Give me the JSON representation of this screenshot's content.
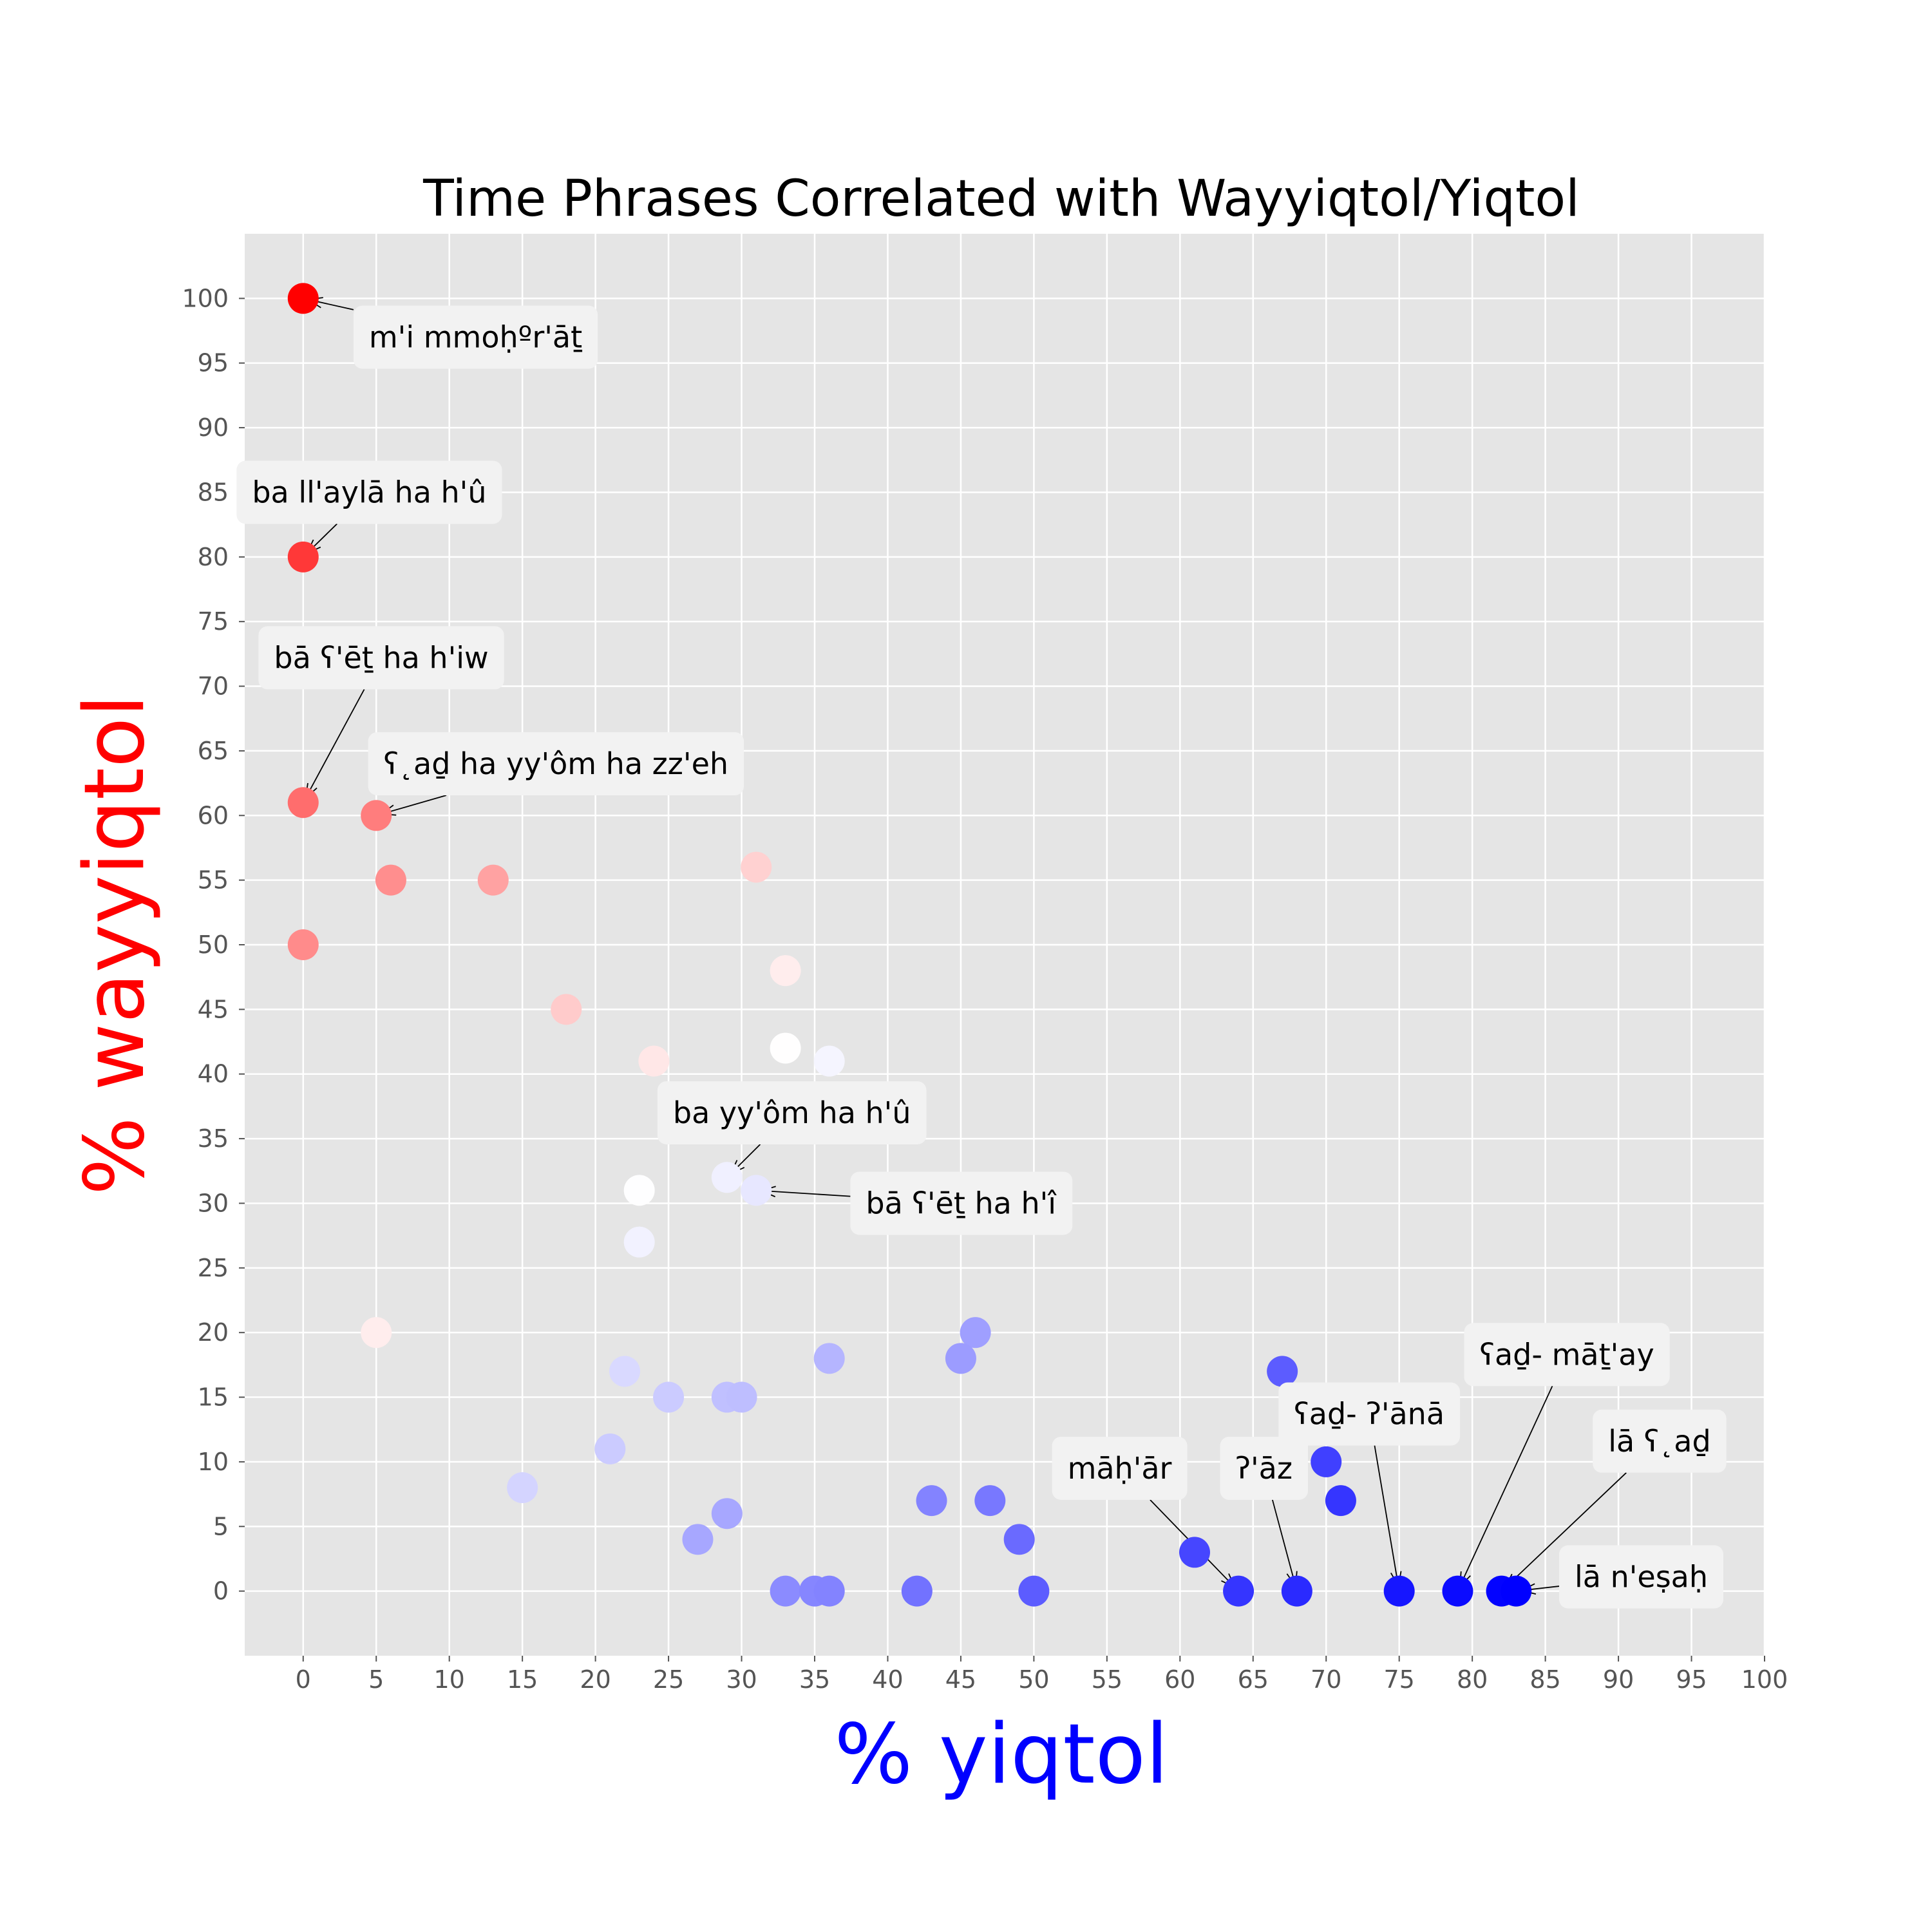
{
  "chart_data": {
    "type": "scatter",
    "title": "Time Phrases Correlated with Wayyiqtol/Yiqtol",
    "xlabel": "% yiqtol",
    "ylabel": "% wayyiqtol",
    "xlim": [
      -4,
      100
    ],
    "ylim": [
      -5,
      105
    ],
    "x_ticks": [
      0,
      5,
      10,
      15,
      20,
      25,
      30,
      35,
      40,
      45,
      50,
      55,
      60,
      65,
      70,
      75,
      80,
      85,
      90,
      95,
      100
    ],
    "y_ticks": [
      0,
      5,
      10,
      15,
      20,
      25,
      30,
      35,
      40,
      45,
      50,
      55,
      60,
      65,
      70,
      75,
      80,
      85,
      90,
      95,
      100
    ],
    "grid": true,
    "colors": {
      "background": "#e5e5e5",
      "grid": "#ffffff",
      "xlabel": "#0000ff",
      "ylabel": "#ff0000",
      "annotation_box": "#f2f2f2",
      "colormap": "bwr"
    },
    "points": [
      {
        "x": 0,
        "y": 100
      },
      {
        "x": 0,
        "y": 80
      },
      {
        "x": 0,
        "y": 61
      },
      {
        "x": 0,
        "y": 50
      },
      {
        "x": 5,
        "y": 60
      },
      {
        "x": 6,
        "y": 55
      },
      {
        "x": 13,
        "y": 55
      },
      {
        "x": 5,
        "y": 20
      },
      {
        "x": 18,
        "y": 45
      },
      {
        "x": 24,
        "y": 41
      },
      {
        "x": 31,
        "y": 56
      },
      {
        "x": 33,
        "y": 48
      },
      {
        "x": 33,
        "y": 42
      },
      {
        "x": 36,
        "y": 41
      },
      {
        "x": 29,
        "y": 32
      },
      {
        "x": 31,
        "y": 31
      },
      {
        "x": 23,
        "y": 31
      },
      {
        "x": 23,
        "y": 27
      },
      {
        "x": 22,
        "y": 17
      },
      {
        "x": 25,
        "y": 15
      },
      {
        "x": 29,
        "y": 15
      },
      {
        "x": 30,
        "y": 15
      },
      {
        "x": 36,
        "y": 18
      },
      {
        "x": 15,
        "y": 8
      },
      {
        "x": 21,
        "y": 11
      },
      {
        "x": 27,
        "y": 4
      },
      {
        "x": 29,
        "y": 6
      },
      {
        "x": 46,
        "y": 20
      },
      {
        "x": 45,
        "y": 18
      },
      {
        "x": 43,
        "y": 7
      },
      {
        "x": 47,
        "y": 7
      },
      {
        "x": 49,
        "y": 4
      },
      {
        "x": 33,
        "y": 0
      },
      {
        "x": 35,
        "y": 0
      },
      {
        "x": 36,
        "y": 0
      },
      {
        "x": 42,
        "y": 0
      },
      {
        "x": 50,
        "y": 0
      },
      {
        "x": 61,
        "y": 3
      },
      {
        "x": 64,
        "y": 0
      },
      {
        "x": 67,
        "y": 17
      },
      {
        "x": 70,
        "y": 10
      },
      {
        "x": 71,
        "y": 7
      },
      {
        "x": 68,
        "y": 0
      },
      {
        "x": 75,
        "y": 0
      },
      {
        "x": 79,
        "y": 0
      },
      {
        "x": 82,
        "y": 0
      },
      {
        "x": 83,
        "y": 0
      }
    ],
    "annotations": [
      {
        "text": "m'i mmoḥºr'āṯ",
        "x": 0,
        "y": 100,
        "tx": 4.5,
        "ty": 97
      },
      {
        "text": "ba  ll'aylā ha h'û",
        "x": 0,
        "y": 80,
        "tx": -3.5,
        "ty": 85
      },
      {
        "text": "bā  ʕ'ēṯ ha h'iw",
        "x": 0,
        "y": 61,
        "tx": -2,
        "ty": 72.2
      },
      {
        "text": "ʕ˛aḏ ha yy'ôm ha zz'eh",
        "x": 5,
        "y": 60,
        "tx": 5.5,
        "ty": 64
      },
      {
        "text": "ba  yy'ôm ha h'û",
        "x": 29,
        "y": 32,
        "tx": 25.3,
        "ty": 37
      },
      {
        "text": "bā  ʕ'ēṯ ha h'î",
        "x": 31,
        "y": 31,
        "tx": 38.5,
        "ty": 30
      },
      {
        "text": "māḥ'ār",
        "x": 64,
        "y": 0,
        "tx": 52.3,
        "ty": 9.5
      },
      {
        "text": "ʔ'āz",
        "x": 68,
        "y": 0,
        "tx": 63.8,
        "ty": 9.5
      },
      {
        "text": "ʕaḏ- ʔ'ānā",
        "x": 75,
        "y": 0,
        "tx": 67.8,
        "ty": 13.7
      },
      {
        "text": "ʕaḏ- māṯ'ay",
        "x": 79,
        "y": 0,
        "tx": 80.5,
        "ty": 18.3
      },
      {
        "text": "lā ʕ˛aḏ",
        "x": 82,
        "y": 0,
        "tx": 89.3,
        "ty": 11.6
      },
      {
        "text": "lā n'eṣaḥ",
        "x": 83,
        "y": 0,
        "tx": 87,
        "ty": 1.1
      }
    ]
  }
}
